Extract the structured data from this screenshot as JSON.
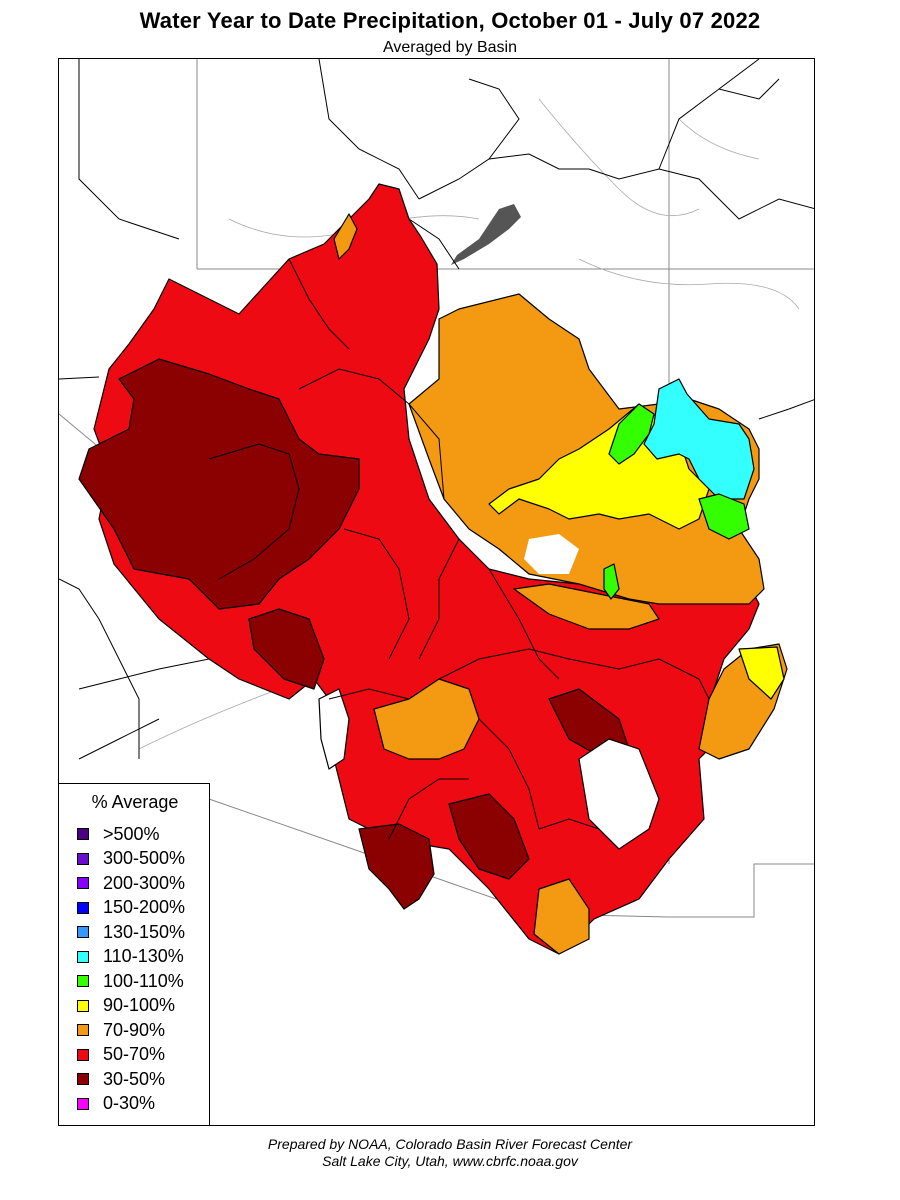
{
  "title": "Water Year to Date Precipitation, October 01  - July 07 2022",
  "subtitle": "Averaged by Basin",
  "legend": {
    "title": "% Average",
    "items": [
      {
        "label": ">500%",
        "color": "#4b0082"
      },
      {
        "label": "300-500%",
        "color": "#6a0dcc"
      },
      {
        "label": "200-300%",
        "color": "#8a00ff"
      },
      {
        "label": "150-200%",
        "color": "#0000ff"
      },
      {
        "label": "130-150%",
        "color": "#3399ff"
      },
      {
        "label": "110-130%",
        "color": "#33ffff"
      },
      {
        "label": "100-110%",
        "color": "#33ff00"
      },
      {
        "label": "90-100%",
        "color": "#ffff00"
      },
      {
        "label": "70-90%",
        "color": "#f39a12"
      },
      {
        "label": "50-70%",
        "color": "#ee0a12"
      },
      {
        "label": "30-50%",
        "color": "#8b0000"
      },
      {
        "label": "0-30%",
        "color": "#ff00ff"
      }
    ]
  },
  "credits": {
    "line1": "Prepared by NOAA, Colorado Basin River Forecast Center",
    "line2": "Salt Lake City, Utah, www.cbrfc.noaa.gov"
  }
}
